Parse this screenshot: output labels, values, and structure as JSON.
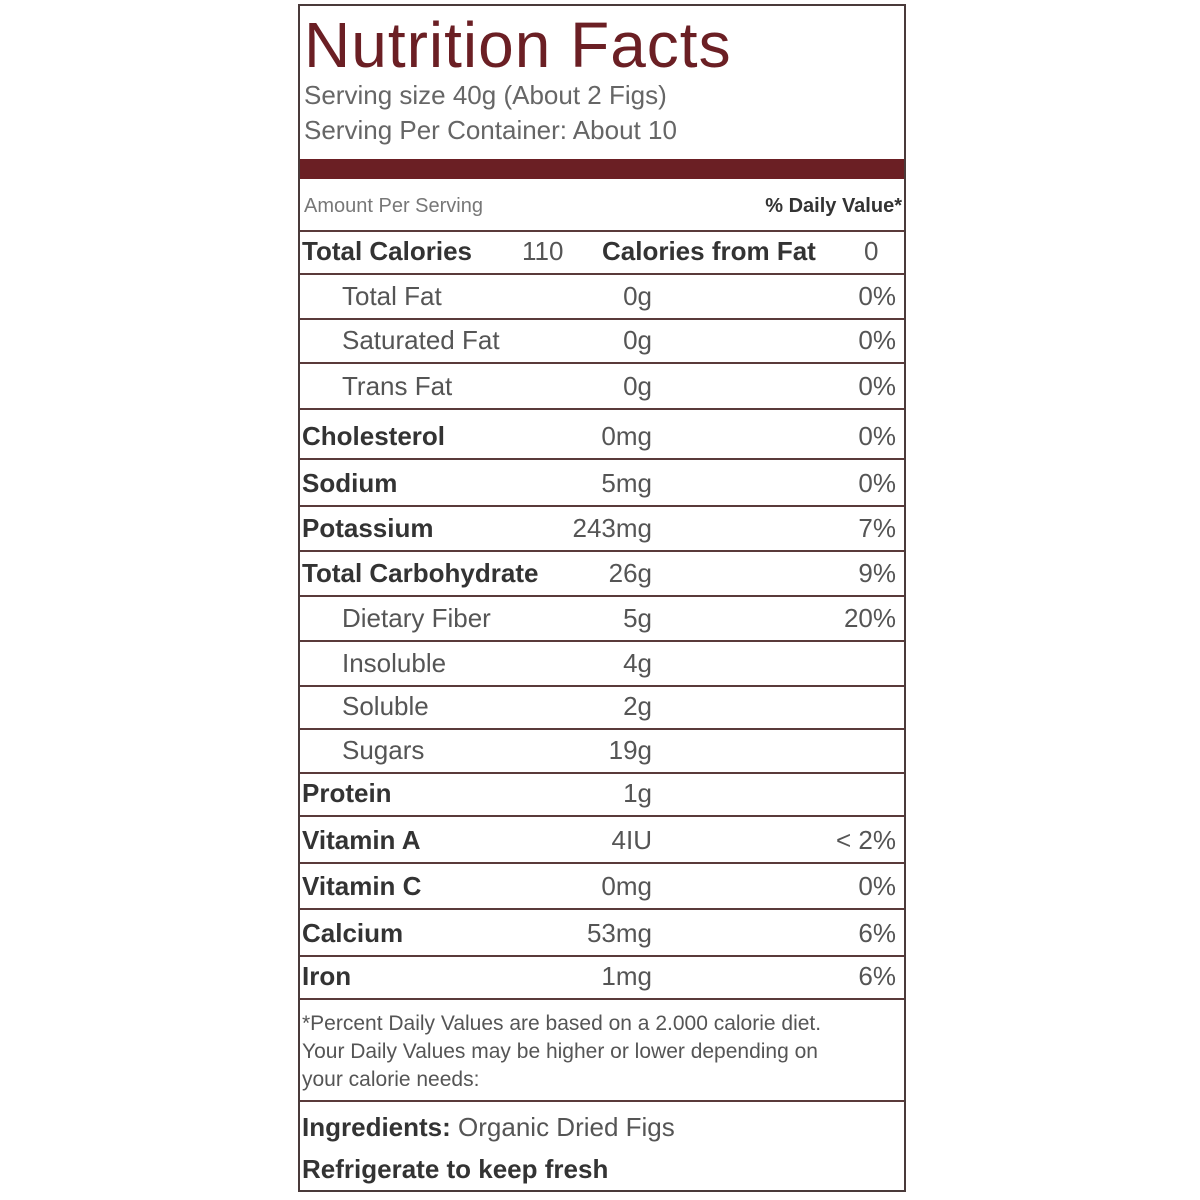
{
  "header": {
    "title": "Nutrition Facts",
    "serving_size": "Serving size 40g (About 2 Figs)",
    "servings_per_container": "Serving Per Container: About 10"
  },
  "table": {
    "amount_per_serving": "Amount Per Serving",
    "daily_value_header": "% Daily Value*",
    "calories": {
      "label": "Total Calories",
      "value": "110",
      "fat_label": "Calories from Fat",
      "fat_value": "0"
    },
    "rows": [
      {
        "label": "Total Fat",
        "amount": "0g",
        "dv": "0%"
      },
      {
        "label": "Saturated Fat",
        "amount": "0g",
        "dv": "0%"
      },
      {
        "label": "Trans Fat",
        "amount": "0g",
        "dv": "0%"
      },
      {
        "label": "Cholesterol",
        "amount": "0mg",
        "dv": "0%"
      },
      {
        "label": "Sodium",
        "amount": "5mg",
        "dv": "0%"
      },
      {
        "label": "Potassium",
        "amount": "243mg",
        "dv": "7%"
      },
      {
        "label": "Total Carbohydrate",
        "amount": "26g",
        "dv": "9%"
      },
      {
        "label": "Dietary Fiber",
        "amount": "5g",
        "dv": "20%"
      },
      {
        "label": "Insoluble",
        "amount": "4g"
      },
      {
        "label": "Soluble",
        "amount": "2g"
      },
      {
        "label": "Sugars",
        "amount": "19g"
      },
      {
        "label": "Protein",
        "amount": "1g"
      },
      {
        "label": "Vitamin A",
        "amount": "4IU",
        "dv": "< 2%"
      },
      {
        "label": "Vitamin C",
        "amount": "0mg",
        "dv": "0%"
      },
      {
        "label": "Calcium",
        "amount": "53mg",
        "dv": "6%"
      },
      {
        "label": "Iron",
        "amount": "1mg",
        "dv": "6%"
      }
    ]
  },
  "footnote": [
    "*Percent Daily Values are based on a 2.000 calorie diet.",
    "Your Daily Values may be higher or lower depending on",
    "your calorie needs:"
  ],
  "ingredients": {
    "label": "Ingredients:",
    "value": "Organic Dried Figs"
  },
  "storage": "Refrigerate to keep fresh"
}
